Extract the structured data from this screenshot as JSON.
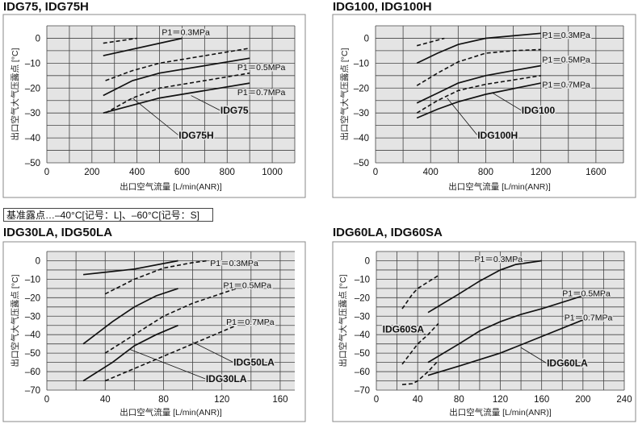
{
  "note": "基准露点…–40°C[记号：L]、–60°C[记号：S]",
  "chart_data": [
    {
      "type": "line",
      "title": "IDG75, IDG75H",
      "xlabel": "出口空气流量  [L/min(ANR)]",
      "ylabel": "出口空气大气压露点  [°C]",
      "xlim": [
        0,
        1100
      ],
      "ylim": [
        -50,
        5
      ],
      "xticks": [
        0,
        200,
        400,
        600,
        800,
        1000
      ],
      "yticks": [
        0,
        -10,
        -20,
        -30,
        -40,
        -50
      ],
      "xgrid_step": 100,
      "ygrid_step": 5,
      "grid": true,
      "series": [
        {
          "name": "IDG75 P1=0.3MPa",
          "style": "solid",
          "points": [
            [
              250,
              -7
            ],
            [
              600,
              0
            ]
          ]
        },
        {
          "name": "IDG75H P1=0.3MPa",
          "style": "dashed",
          "points": [
            [
              250,
              -2
            ],
            [
              400,
              0
            ]
          ]
        },
        {
          "name": "IDG75H P1=0.5MPa",
          "style": "dashed",
          "points": [
            [
              260,
              -17
            ],
            [
              380,
              -13
            ],
            [
              500,
              -10
            ],
            [
              700,
              -7
            ],
            [
              900,
              -4
            ]
          ]
        },
        {
          "name": "IDG75 P1=0.5MPa",
          "style": "solid",
          "points": [
            [
              250,
              -23
            ],
            [
              380,
              -17
            ],
            [
              500,
              -14
            ],
            [
              700,
              -11
            ],
            [
              900,
              -8
            ]
          ]
        },
        {
          "name": "IDG75H P1=0.7MPa",
          "style": "dashed",
          "points": [
            [
              260,
              -30
            ],
            [
              380,
              -24
            ],
            [
              500,
              -20
            ],
            [
              700,
              -17
            ],
            [
              900,
              -14
            ]
          ]
        },
        {
          "name": "IDG75 P1=0.7MPa",
          "style": "solid",
          "points": [
            [
              250,
              -30
            ],
            [
              500,
              -24
            ],
            [
              700,
              -21
            ],
            [
              900,
              -18
            ]
          ]
        }
      ],
      "pressure_labels": [
        {
          "text": "P1＝0.3MPa",
          "x": 510,
          "y": 2.5
        },
        {
          "text": "P1＝0.5MPa",
          "x": 845,
          "y": -11.5
        },
        {
          "text": "P1＝0.7MPa",
          "x": 845,
          "y": -21.5
        }
      ],
      "model_labels": [
        {
          "text": "IDG75",
          "x": 770,
          "y": -29,
          "from": [
            640,
            -23
          ]
        },
        {
          "text": "IDG75H",
          "x": 585,
          "y": -39,
          "from": [
            380,
            -24
          ]
        }
      ]
    },
    {
      "type": "line",
      "title": "IDG100, IDG100H",
      "xlabel": "出口空气流量  [L/min(ANR)]",
      "ylabel": "出口空气大气压露点  [°C]",
      "xlim": [
        0,
        1800
      ],
      "ylim": [
        -50,
        5
      ],
      "xticks": [
        0,
        400,
        800,
        1200,
        1600
      ],
      "yticks": [
        0,
        -10,
        -20,
        -30,
        -40,
        -50
      ],
      "xgrid_step": 200,
      "ygrid_step": 5,
      "grid": true,
      "series": [
        {
          "name": "IDG100 P1=0.3MPa",
          "style": "solid",
          "points": [
            [
              300,
              -10
            ],
            [
              450,
              -6
            ],
            [
              600,
              -2.5
            ],
            [
              800,
              0
            ],
            [
              1000,
              1
            ],
            [
              1200,
              2
            ]
          ]
        },
        {
          "name": "IDG100H P1=0.3MPa",
          "style": "dashed",
          "points": [
            [
              300,
              -3
            ],
            [
              500,
              0
            ]
          ]
        },
        {
          "name": "IDG100H P1=0.5MPa",
          "style": "dashed",
          "points": [
            [
              300,
              -19
            ],
            [
              450,
              -14
            ],
            [
              600,
              -9.5
            ],
            [
              800,
              -6
            ],
            [
              1000,
              -5
            ],
            [
              1200,
              -4.5
            ]
          ]
        },
        {
          "name": "IDG100 P1=0.5MPa",
          "style": "solid",
          "points": [
            [
              300,
              -26
            ],
            [
              450,
              -22
            ],
            [
              600,
              -18
            ],
            [
              800,
              -15
            ],
            [
              1000,
              -13
            ],
            [
              1200,
              -11
            ]
          ]
        },
        {
          "name": "IDG100H P1=0.7MPa",
          "style": "dashed",
          "points": [
            [
              300,
              -30
            ],
            [
              450,
              -25
            ],
            [
              600,
              -21
            ],
            [
              800,
              -18.5
            ],
            [
              1200,
              -15
            ]
          ]
        },
        {
          "name": "IDG100 P1=0.7MPa",
          "style": "solid",
          "points": [
            [
              300,
              -32
            ],
            [
              450,
              -28.5
            ],
            [
              600,
              -25.5
            ],
            [
              800,
              -22.5
            ],
            [
              1200,
              -18
            ]
          ]
        }
      ],
      "pressure_labels": [
        {
          "text": "P1＝0.3MPa",
          "x": 1210,
          "y": 1.5
        },
        {
          "text": "P1＝0.5MPa",
          "x": 1210,
          "y": -8.5
        },
        {
          "text": "P1＝0.7MPa",
          "x": 1210,
          "y": -18.5
        }
      ],
      "model_labels": [
        {
          "text": "IDG100",
          "x": 1060,
          "y": -29,
          "from": [
            850,
            -22
          ]
        },
        {
          "text": "IDG100H",
          "x": 740,
          "y": -39,
          "from": [
            520,
            -24
          ]
        }
      ]
    },
    {
      "type": "line",
      "title": "IDG30LA, IDG50LA",
      "xlabel": "出口空气流量  [L/min(ANR)]",
      "ylabel": "出口空气大气压露点  [°C]",
      "xlim": [
        0,
        170
      ],
      "ylim": [
        -70,
        5
      ],
      "xticks": [
        0,
        40,
        80,
        120,
        160
      ],
      "yticks": [
        0,
        -10,
        -20,
        -30,
        -40,
        -50,
        -60,
        -70
      ],
      "xgrid_step": 20,
      "ygrid_step": 5,
      "grid": true,
      "series": [
        {
          "name": "IDG30LA P1=0.3MPa",
          "style": "solid",
          "points": [
            [
              25,
              -7.5
            ],
            [
              60,
              -4.5
            ],
            [
              90,
              0
            ]
          ]
        },
        {
          "name": "IDG50LA P1=0.3MPa",
          "style": "dashed",
          "points": [
            [
              40,
              -18
            ],
            [
              60,
              -10
            ],
            [
              80,
              -4
            ],
            [
              100,
              -1
            ],
            [
              110,
              0
            ]
          ]
        },
        {
          "name": "IDG30LA P1=0.5MPa",
          "style": "solid",
          "points": [
            [
              25,
              -45
            ],
            [
              45,
              -33
            ],
            [
              60,
              -25
            ],
            [
              75,
              -19
            ],
            [
              90,
              -15
            ]
          ]
        },
        {
          "name": "IDG50LA P1=0.5MPa",
          "style": "dashed",
          "points": [
            [
              40,
              -50
            ],
            [
              60,
              -40
            ],
            [
              80,
              -30
            ],
            [
              100,
              -23
            ],
            [
              130,
              -15
            ]
          ]
        },
        {
          "name": "IDG30LA P1=0.7MPa",
          "style": "solid",
          "points": [
            [
              25,
              -65
            ],
            [
              45,
              -55
            ],
            [
              60,
              -46
            ],
            [
              75,
              -40
            ],
            [
              90,
              -35
            ]
          ]
        },
        {
          "name": "IDG50LA P1=0.7MPa",
          "style": "dashed",
          "points": [
            [
              40,
              -65
            ],
            [
              70,
              -55
            ],
            [
              100,
              -45
            ],
            [
              130,
              -35
            ]
          ]
        }
      ],
      "pressure_labels": [
        {
          "text": "P1＝0.3MPa",
          "x": 112,
          "y": -1
        },
        {
          "text": "P1＝0.5MPa",
          "x": 121,
          "y": -13
        },
        {
          "text": "P1＝0.7MPa",
          "x": 123,
          "y": -33
        }
      ],
      "model_labels": [
        {
          "text": "IDG50LA",
          "x": 128,
          "y": -55,
          "from": [
            100,
            -44
          ]
        },
        {
          "text": "IDG30LA",
          "x": 109,
          "y": -64,
          "from": [
            57,
            -48
          ]
        }
      ]
    },
    {
      "type": "line",
      "title": "IDG60LA, IDG60SA",
      "xlabel": "出口空气流量  [L/min(ANR)]",
      "ylabel": "出口空气大气压露点  [°C]",
      "xlim": [
        0,
        240
      ],
      "ylim": [
        -70,
        5
      ],
      "xticks": [
        0,
        40,
        80,
        120,
        160,
        200,
        240
      ],
      "yticks": [
        0,
        -10,
        -20,
        -30,
        -40,
        -50,
        -60,
        -70
      ],
      "xgrid_step": 20,
      "ygrid_step": 5,
      "grid": true,
      "series": [
        {
          "name": "IDG60SA P1=0.3MPa",
          "style": "dashed",
          "points": [
            [
              25,
              -26
            ],
            [
              35,
              -18
            ],
            [
              40,
              -15
            ],
            [
              60,
              -8
            ]
          ]
        },
        {
          "name": "IDG60SA P1=0.5MPa",
          "style": "dashed",
          "points": [
            [
              25,
              -56
            ],
            [
              40,
              -45
            ],
            [
              50,
              -40
            ],
            [
              60,
              -34
            ]
          ]
        },
        {
          "name": "IDG60SA P1=0.7MPa",
          "style": "dashed",
          "points": [
            [
              25,
              -67
            ],
            [
              35,
              -66.5
            ],
            [
              40,
              -65
            ],
            [
              50,
              -60
            ],
            [
              60,
              -54
            ]
          ]
        },
        {
          "name": "IDG60LA P1=0.3MPa",
          "style": "solid",
          "points": [
            [
              50,
              -28
            ],
            [
              80,
              -18
            ],
            [
              100,
              -11
            ],
            [
              120,
              -5
            ],
            [
              135,
              -2
            ],
            [
              160,
              0
            ]
          ]
        },
        {
          "name": "IDG60LA P1=0.5MPa",
          "style": "solid",
          "points": [
            [
              50,
              -55
            ],
            [
              80,
              -45
            ],
            [
              100,
              -38
            ],
            [
              120,
              -33
            ],
            [
              140,
              -29
            ],
            [
              160,
              -26
            ],
            [
              200,
              -19
            ]
          ]
        },
        {
          "name": "IDG60LA P1=0.7MPa",
          "style": "solid",
          "points": [
            [
              50,
              -62
            ],
            [
              80,
              -57
            ],
            [
              120,
              -50
            ],
            [
              160,
              -41
            ],
            [
              200,
              -32
            ]
          ]
        }
      ],
      "pressure_labels": [
        {
          "text": "P1＝0.3MPa",
          "x": 95,
          "y": 1
        },
        {
          "text": "P1＝0.5MPa",
          "x": 180,
          "y": -17.5
        },
        {
          "text": "P1＝0.7MPa",
          "x": 182,
          "y": -30.5
        }
      ],
      "model_labels": [
        {
          "text": "IDG60SA",
          "x": 6,
          "y": -37,
          "from": [
            48,
            -40
          ]
        },
        {
          "text": "IDG60LA",
          "x": 165,
          "y": -55.5,
          "from": [
            140,
            -47
          ]
        }
      ]
    }
  ]
}
